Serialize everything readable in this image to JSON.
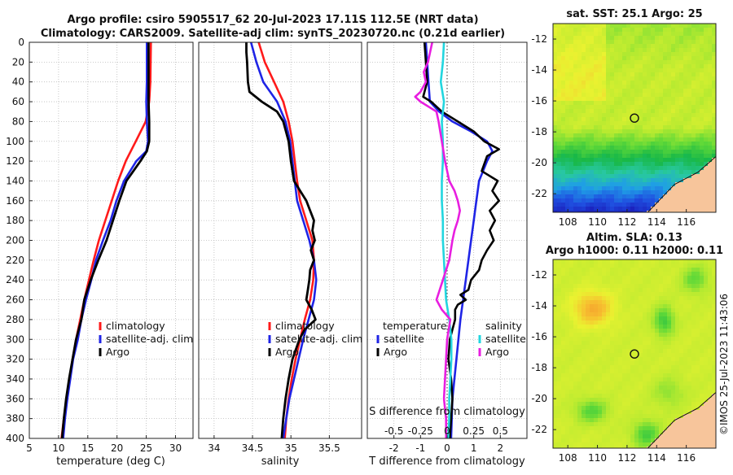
{
  "title_line1": "Argo profile: csiro 5905517_62 20-Jul-2023 17.11S 112.5E (NRT data)",
  "title_line2": "Climatology: CARS2009. Satellite-adj clim: synTS_20230720.nc (0.21d earlier)",
  "side_stamp": "©IMOS 25-Jul-2023 11:43:06",
  "colors": {
    "climatology": "#ff1a1a",
    "satellite": "#1f24e6",
    "argo": "#000000",
    "sat_salinity": "#22d6df",
    "argo_salinity": "#e81ee0",
    "land": "#f7c59b"
  },
  "chart_data": [
    {
      "type": "line",
      "id": "temperature",
      "xlabel": "temperature (deg C)",
      "xlim": [
        5,
        33
      ],
      "xticks": [
        "5",
        "10",
        "15",
        "20",
        "25",
        "30"
      ],
      "ylim": [
        0,
        400
      ],
      "yticks": [
        "0",
        "20",
        "40",
        "60",
        "80",
        "100",
        "120",
        "140",
        "160",
        "180",
        "200",
        "220",
        "240",
        "260",
        "280",
        "300",
        "320",
        "340",
        "360",
        "380",
        "400"
      ],
      "legend": [
        "climatology",
        "satellite-adj. clim",
        "Argo"
      ],
      "series": [
        {
          "name": "climatology",
          "depth": [
            0,
            40,
            60,
            80,
            100,
            120,
            140,
            160,
            180,
            200,
            220,
            240,
            260,
            280,
            300,
            320,
            340,
            360,
            380,
            400
          ],
          "values": [
            25.8,
            25.7,
            25.5,
            24.9,
            23.2,
            21.5,
            20.2,
            19.1,
            18.0,
            16.9,
            16.0,
            15.2,
            14.4,
            13.7,
            13.0,
            12.4,
            11.9,
            11.4,
            10.9,
            10.5
          ]
        },
        {
          "name": "satellite-adj. clim",
          "depth": [
            0,
            40,
            60,
            80,
            100,
            110,
            120,
            140,
            160,
            180,
            200,
            220,
            240,
            260,
            280,
            300,
            320,
            340,
            360,
            380,
            400
          ],
          "values": [
            25.1,
            25.1,
            25.0,
            25.1,
            25.3,
            25.0,
            23.3,
            21.2,
            19.9,
            18.9,
            17.6,
            16.4,
            15.6,
            14.7,
            13.9,
            13.3,
            12.5,
            12.0,
            11.5,
            11.1,
            10.8
          ]
        },
        {
          "name": "Argo",
          "depth": [
            0,
            40,
            60,
            80,
            100,
            110,
            120,
            140,
            160,
            180,
            200,
            220,
            240,
            260,
            280,
            300,
            320,
            340,
            360,
            380,
            400
          ],
          "values": [
            25.4,
            25.4,
            25.4,
            25.5,
            25.5,
            25.1,
            24.0,
            21.6,
            20.4,
            19.3,
            18.2,
            16.8,
            15.5,
            14.4,
            13.9,
            13.0,
            12.4,
            11.8,
            11.3,
            10.9,
            10.6
          ]
        }
      ]
    },
    {
      "type": "line",
      "id": "salinity",
      "xlabel": "salinity",
      "xlim": [
        33.8,
        35.92
      ],
      "xticks": [
        "34",
        "34.5",
        "35",
        "35.5"
      ],
      "ylim": [
        0,
        400
      ],
      "legend": [
        "climatology",
        "satellite-adj. clim",
        "Argo"
      ],
      "series": [
        {
          "name": "climatology",
          "depth": [
            0,
            20,
            40,
            60,
            80,
            100,
            120,
            140,
            160,
            180,
            200,
            220,
            240,
            260,
            280,
            300,
            320,
            340,
            360,
            380,
            400
          ],
          "values": [
            34.58,
            34.66,
            34.78,
            34.9,
            34.97,
            35.02,
            35.05,
            35.08,
            35.12,
            35.2,
            35.28,
            35.3,
            35.29,
            35.25,
            35.18,
            35.12,
            35.06,
            35.01,
            34.97,
            34.94,
            34.92
          ]
        },
        {
          "name": "satellite-adj. clim",
          "depth": [
            0,
            20,
            40,
            60,
            80,
            100,
            120,
            140,
            160,
            180,
            200,
            220,
            240,
            260,
            280,
            300,
            320,
            340,
            360,
            380,
            400
          ],
          "values": [
            34.48,
            34.55,
            34.64,
            34.82,
            34.93,
            34.99,
            35.02,
            35.05,
            35.08,
            35.16,
            35.24,
            35.3,
            35.33,
            35.3,
            35.23,
            35.16,
            35.1,
            35.04,
            34.98,
            34.94,
            34.9
          ]
        },
        {
          "name": "Argo",
          "depth": [
            0,
            10,
            20,
            40,
            50,
            60,
            70,
            80,
            100,
            120,
            140,
            150,
            160,
            170,
            180,
            190,
            200,
            210,
            220,
            230,
            240,
            250,
            260,
            270,
            280,
            290,
            300,
            320,
            340,
            360,
            380,
            400
          ],
          "values": [
            34.42,
            34.42,
            34.43,
            34.44,
            34.46,
            34.62,
            34.82,
            34.9,
            34.97,
            35.0,
            35.04,
            35.12,
            35.2,
            35.25,
            35.3,
            35.28,
            35.31,
            35.26,
            35.3,
            35.25,
            35.24,
            35.22,
            35.2,
            35.27,
            35.32,
            35.18,
            35.11,
            35.02,
            34.97,
            34.93,
            34.9,
            34.88
          ]
        }
      ]
    },
    {
      "type": "line",
      "id": "difference",
      "xlabel": "T difference from climatology",
      "xlabel_top": "S difference from climatology",
      "xlim": [
        -3,
        3
      ],
      "xticks": [
        "-2",
        "-1",
        "0",
        "1",
        "2"
      ],
      "xticks_top": [
        "-0.5",
        "-0.25",
        "0",
        "0.25",
        "0.5"
      ],
      "ylim": [
        0,
        400
      ],
      "legend_temperature_title": "temperature",
      "legend_salinity_title": "salinity",
      "legend_temperature": [
        "satellite",
        "Argo"
      ],
      "legend_salinity": [
        "satellite",
        "Argo"
      ],
      "series": [
        {
          "name": "temperature satellite",
          "depth": [
            0,
            20,
            40,
            60,
            70,
            80,
            90,
            100,
            105,
            110,
            120,
            140,
            160,
            180,
            200,
            240,
            280,
            320,
            360,
            400
          ],
          "values": [
            -0.8,
            -0.75,
            -0.7,
            -0.65,
            -0.3,
            0.2,
            0.9,
            1.5,
            1.6,
            1.7,
            1.5,
            1.2,
            1.1,
            1.0,
            0.9,
            0.7,
            0.5,
            0.35,
            0.2,
            0.15
          ]
        },
        {
          "name": "temperature Argo",
          "depth": [
            0,
            20,
            40,
            55,
            60,
            70,
            80,
            90,
            100,
            108,
            115,
            130,
            140,
            150,
            160,
            170,
            180,
            190,
            200,
            210,
            220,
            230,
            240,
            250,
            255,
            260,
            265,
            270,
            280,
            290,
            300,
            320,
            340,
            360,
            380,
            400
          ],
          "values": [
            -0.85,
            -0.8,
            -0.75,
            -0.9,
            -0.6,
            -0.2,
            0.4,
            1.0,
            1.4,
            1.95,
            1.5,
            1.3,
            1.9,
            1.7,
            1.95,
            1.6,
            1.8,
            1.6,
            1.75,
            1.5,
            1.3,
            1.2,
            0.9,
            0.8,
            0.5,
            0.7,
            0.4,
            0.3,
            0.3,
            0.2,
            0.1,
            0.05,
            0.15,
            0.2,
            0.15,
            0.1
          ]
        },
        {
          "name": "salinity satellite",
          "depth": [
            0,
            20,
            40,
            60,
            80,
            100,
            120,
            140,
            160,
            180,
            200,
            220,
            240,
            260,
            280,
            300,
            320,
            340,
            360,
            380,
            400
          ],
          "values": [
            -0.03,
            -0.04,
            -0.06,
            -0.03,
            -0.05,
            -0.04,
            -0.04,
            -0.05,
            -0.05,
            -0.04,
            -0.04,
            -0.03,
            -0.02,
            -0.01,
            0.02,
            0.04,
            0.04,
            0.03,
            0.02,
            0.02,
            0.01
          ]
        },
        {
          "name": "salinity Argo",
          "depth": [
            0,
            20,
            30,
            40,
            50,
            55,
            60,
            70,
            80,
            100,
            120,
            140,
            150,
            160,
            170,
            180,
            190,
            200,
            220,
            240,
            250,
            260,
            270,
            280,
            300,
            320,
            340,
            360,
            380,
            400
          ],
          "values": [
            -0.14,
            -0.18,
            -0.22,
            -0.2,
            -0.25,
            -0.3,
            -0.25,
            -0.1,
            -0.08,
            -0.05,
            -0.02,
            0.02,
            0.07,
            0.1,
            0.12,
            0.1,
            0.07,
            0.05,
            0.02,
            -0.04,
            -0.07,
            -0.1,
            -0.05,
            0.03,
            0.0,
            -0.01,
            -0.02,
            -0.03,
            -0.01,
            -0.01
          ]
        }
      ]
    },
    {
      "type": "heatmap",
      "id": "sst_map",
      "title": "sat. SST: 25.1 Argo: 25",
      "xlim": [
        107,
        118
      ],
      "ylim": [
        -23.2,
        -11
      ],
      "xticks": [
        "108",
        "110",
        "112",
        "114",
        "116"
      ],
      "yticks": [
        "-12",
        "-14",
        "-16",
        "-18",
        "-20",
        "-22"
      ],
      "marker": {
        "lon": 112.5,
        "lat": -17.11
      }
    },
    {
      "type": "heatmap",
      "id": "sla_map",
      "title_line1": "Altim. SLA: 0.13",
      "title_line2": "Argo h1000: 0.11 h2000: 0.11",
      "xlim": [
        107,
        118
      ],
      "ylim": [
        -23.2,
        -11
      ],
      "xticks": [
        "108",
        "110",
        "112",
        "114",
        "116"
      ],
      "yticks": [
        "-12",
        "-14",
        "-16",
        "-18",
        "-20",
        "-22"
      ],
      "marker": {
        "lon": 112.5,
        "lat": -17.11
      }
    }
  ]
}
